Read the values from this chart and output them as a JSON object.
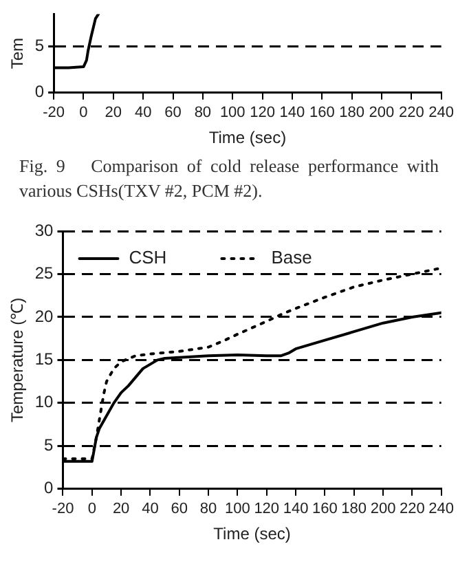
{
  "chart_data": [
    {
      "type": "line",
      "xlabel": "Time (sec)",
      "ylabel": "Tem",
      "xlim": [
        -20,
        240
      ],
      "xticks": [
        -20,
        0,
        20,
        40,
        60,
        80,
        100,
        120,
        140,
        160,
        180,
        200,
        220,
        240
      ],
      "ylim": [
        0,
        8.5
      ],
      "yticks": [
        0,
        5
      ],
      "grid": "y",
      "legend": false,
      "series": [
        {
          "color": "#000000",
          "line_style": "solid",
          "x": [
            -20,
            -10,
            0,
            2,
            3,
            5,
            8,
            10
          ],
          "values": [
            2.7,
            2.7,
            2.8,
            3.5,
            4.5,
            6,
            8,
            8.5
          ]
        }
      ],
      "annotations": [
        "Fig. 9   Comparison of cold release performance with various CSHs(TXV #2, PCM #2)."
      ]
    },
    {
      "type": "line",
      "xlabel": "Time (sec)",
      "ylabel": "Temperature (℃)",
      "xlim": [
        -20,
        240
      ],
      "xticks": [
        -20,
        0,
        20,
        40,
        60,
        80,
        100,
        120,
        140,
        160,
        180,
        200,
        220,
        240
      ],
      "ylim": [
        0,
        30
      ],
      "yticks": [
        0,
        5,
        10,
        15,
        20,
        25,
        30
      ],
      "grid": "y",
      "legend": "top left",
      "series": [
        {
          "name": "CSH",
          "color": "#000000",
          "line_style": "solid",
          "x": [
            -20,
            -10,
            0,
            3,
            5,
            10,
            15,
            20,
            25,
            30,
            35,
            40,
            45,
            50,
            60,
            80,
            100,
            120,
            130,
            135,
            140,
            160,
            180,
            200,
            220,
            240
          ],
          "values": [
            3.2,
            3.2,
            3.2,
            6,
            7,
            8.5,
            10,
            11.2,
            12,
            13,
            14,
            14.5,
            15,
            15.2,
            15.3,
            15.5,
            15.6,
            15.5,
            15.5,
            15.8,
            16.3,
            17.3,
            18.3,
            19.3,
            20,
            20.5
          ]
        },
        {
          "name": "Base",
          "color": "#000000",
          "line_style": "dotted",
          "x": [
            -20,
            -10,
            0,
            3,
            6,
            8,
            10,
            15,
            20,
            30,
            40,
            60,
            80,
            90,
            100,
            120,
            130,
            140,
            160,
            180,
            200,
            220,
            240
          ],
          "values": [
            3.5,
            3.5,
            3.5,
            6,
            9,
            11,
            12.5,
            14,
            14.8,
            15.5,
            15.7,
            16,
            16.5,
            17.2,
            18,
            19.5,
            20.3,
            21,
            22.3,
            23.5,
            24.3,
            25,
            25.7
          ]
        }
      ]
    }
  ]
}
